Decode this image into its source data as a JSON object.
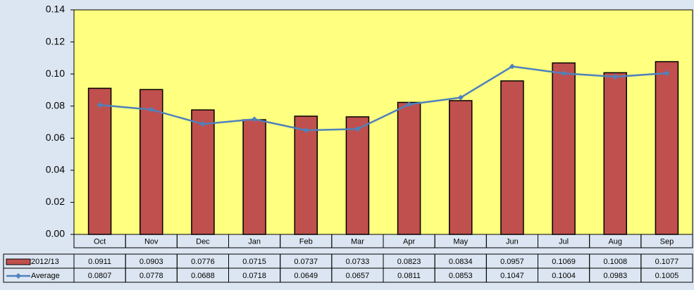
{
  "chart_data": {
    "type": "bar",
    "categories": [
      "Oct",
      "Nov",
      "Dec",
      "Jan",
      "Feb",
      "Mar",
      "Apr",
      "May",
      "Jun",
      "Jul",
      "Aug",
      "Sep"
    ],
    "series": [
      {
        "name": "2012/13",
        "type": "bar",
        "color": "#c0504d",
        "values": [
          0.0911,
          0.0903,
          0.0776,
          0.0715,
          0.0737,
          0.0733,
          0.0823,
          0.0834,
          0.0957,
          0.1069,
          0.1008,
          0.1077
        ]
      },
      {
        "name": "Average",
        "type": "line",
        "color": "#4f81bd",
        "values": [
          0.0807,
          0.0778,
          0.0688,
          0.0718,
          0.0649,
          0.0657,
          0.0811,
          0.0853,
          0.1047,
          0.1004,
          0.0983,
          0.1005
        ]
      }
    ],
    "ylim": [
      0,
      0.14
    ],
    "yticks": [
      {
        "value": 0,
        "label": "0.00"
      },
      0.02,
      0.04,
      0.06,
      0.08,
      {
        "value": 0.1,
        "label": "0.10"
      },
      0.12,
      0.14
    ],
    "data_table": true
  }
}
